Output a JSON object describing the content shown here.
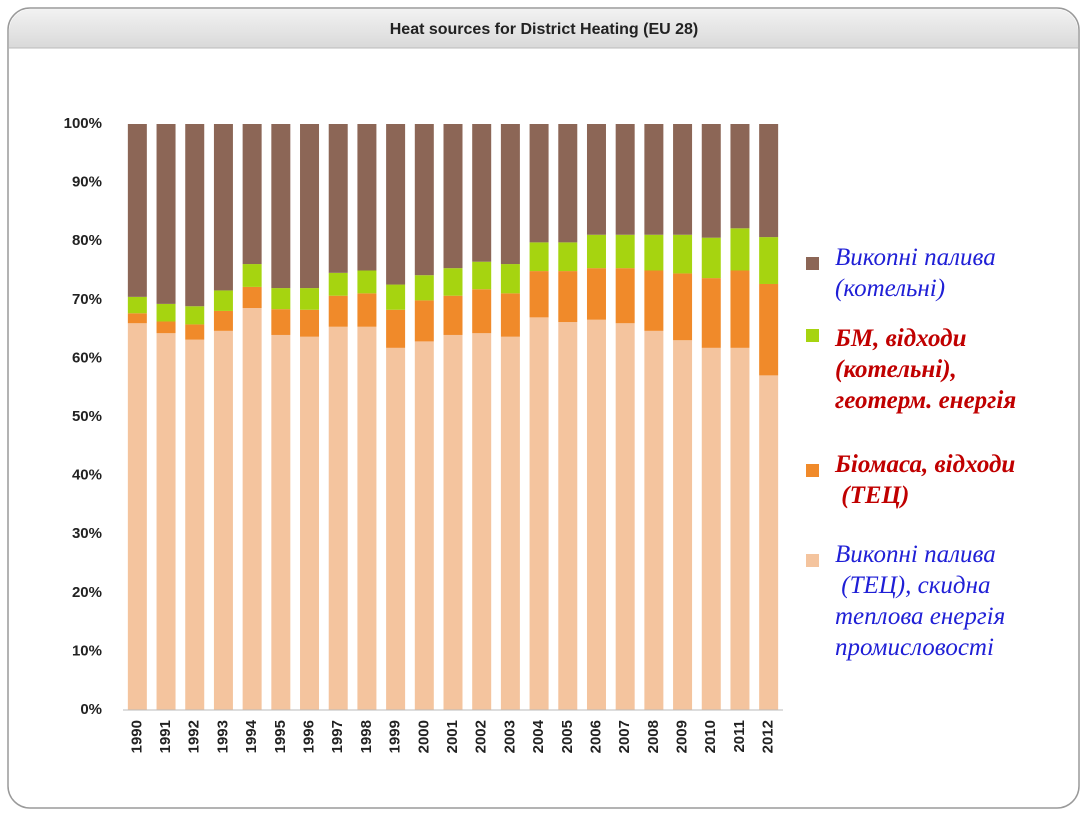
{
  "chart_data": {
    "type": "stacked_bar",
    "title": "Heat sources for District Heating (EU 28)",
    "categories": [
      "1990",
      "1991",
      "1992",
      "1993",
      "1994",
      "1995",
      "1996",
      "1997",
      "1998",
      "1999",
      "2000",
      "2001",
      "2002",
      "2003",
      "2004",
      "2005",
      "2006",
      "2007",
      "2008",
      "2009",
      "2010",
      "2011",
      "2012"
    ],
    "series": [
      {
        "name": "Викопні палива\n (ТЕЦ), скидна\nтеплова енергія\nпромисловості",
        "color": "#f4c49e",
        "label_color": "#1f1fd6",
        "label_bold": false,
        "values": [
          66.0,
          64.3,
          63.2,
          64.7,
          68.6,
          64.0,
          63.7,
          65.4,
          65.4,
          61.8,
          62.9,
          64.0,
          64.3,
          63.7,
          67.0,
          66.2,
          66.6,
          66.0,
          64.7,
          63.1,
          61.8,
          61.8,
          57.1
        ]
      },
      {
        "name": "Біомаса, відходи\n (ТЕЦ)",
        "color": "#f08a2a",
        "label_color": "#c00000",
        "label_bold": true,
        "values": [
          1.7,
          2.0,
          2.6,
          3.4,
          3.6,
          4.4,
          4.6,
          5.3,
          5.7,
          6.5,
          7.0,
          6.7,
          7.5,
          7.4,
          7.9,
          8.7,
          8.8,
          9.4,
          10.3,
          11.4,
          11.9,
          13.2,
          15.6
        ]
      },
      {
        "name": "БМ, відходи\n(котельні),\nгеотерм. енергія",
        "color": "#a6d410",
        "label_color": "#c00000",
        "label_bold": true,
        "values": [
          2.8,
          3.0,
          3.1,
          3.5,
          3.9,
          3.6,
          3.7,
          3.9,
          3.9,
          4.3,
          4.3,
          4.7,
          4.7,
          5.0,
          4.9,
          4.9,
          5.7,
          5.7,
          6.1,
          6.6,
          6.9,
          7.2,
          8.0
        ]
      },
      {
        "name": "Викопні палива\n(котельні)",
        "color": "#8c6656",
        "label_color": "#1f1fd6",
        "label_bold": false,
        "values": [
          29.5,
          30.7,
          31.1,
          28.4,
          23.9,
          28.0,
          28.0,
          25.4,
          25.0,
          27.4,
          25.8,
          24.6,
          23.5,
          23.9,
          20.2,
          20.2,
          18.9,
          18.9,
          18.9,
          18.9,
          19.4,
          17.8,
          19.3
        ]
      }
    ],
    "ylim": [
      0,
      100
    ],
    "yticks": [
      {
        "value": 0,
        "label": "0%"
      },
      {
        "value": 10,
        "label": "10%"
      },
      {
        "value": 20,
        "label": "20%"
      },
      {
        "value": 30,
        "label": "30%"
      },
      {
        "value": 40,
        "label": "40%"
      },
      {
        "value": 50,
        "label": "50%"
      },
      {
        "value": 60,
        "label": "60%"
      },
      {
        "value": 70,
        "label": "70%"
      },
      {
        "value": 80,
        "label": "80%"
      },
      {
        "value": 90,
        "label": "90%"
      },
      {
        "value": 100,
        "label": "100%"
      }
    ],
    "grid": false,
    "legend": "right"
  }
}
